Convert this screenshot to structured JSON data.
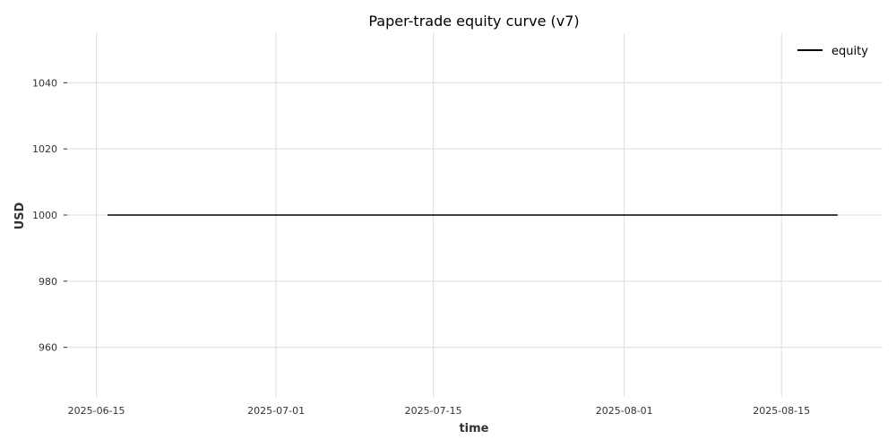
{
  "chart_data": {
    "type": "line",
    "title": "Paper-trade equity curve (v7)",
    "xlabel": "time",
    "ylabel": "USD",
    "x_ticks": [
      "2025-06-15",
      "2025-07-01",
      "2025-07-15",
      "2025-08-01",
      "2025-08-15"
    ],
    "y_ticks": [
      960,
      980,
      1000,
      1020,
      1040
    ],
    "xlim": [
      "2025-06-12",
      "2025-08-24"
    ],
    "ylim": [
      945,
      1055
    ],
    "grid": true,
    "legend_position": "top-right",
    "series": [
      {
        "name": "equity",
        "color": "#000000",
        "points": [
          {
            "x": "2025-06-16",
            "y": 1000
          },
          {
            "x": "2025-08-20",
            "y": 1000
          }
        ]
      }
    ]
  }
}
